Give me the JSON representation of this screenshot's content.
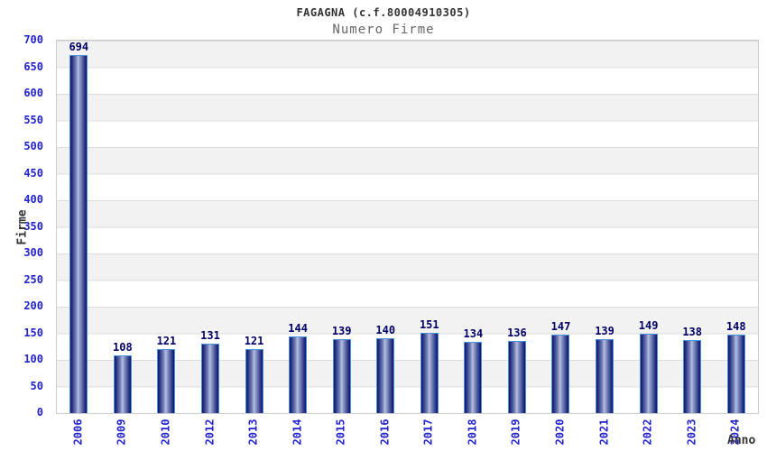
{
  "chart_data": {
    "type": "bar",
    "title": "FAGAGNA (c.f.80004910305)",
    "subtitle": "Numero Firme",
    "xlabel": "Anno",
    "ylabel": "Firme",
    "categories": [
      "2006",
      "2009",
      "2010",
      "2012",
      "2013",
      "2014",
      "2015",
      "2016",
      "2017",
      "2018",
      "2019",
      "2020",
      "2021",
      "2022",
      "2023",
      "2024"
    ],
    "values": [
      694,
      108,
      121,
      131,
      121,
      144,
      139,
      140,
      151,
      134,
      136,
      147,
      139,
      149,
      138,
      148
    ],
    "ylim": [
      0,
      700
    ],
    "y_ticks": [
      0,
      50,
      100,
      150,
      200,
      250,
      300,
      350,
      400,
      450,
      500,
      550,
      600,
      650,
      700
    ],
    "grid": "horizontal-bands",
    "legend": "none",
    "colors": {
      "bar_dark": "#131368",
      "bar_mid": "#2a3787",
      "bar_light": "#b7c0de",
      "bar_border": "#4a90d9",
      "tick_label": "#2222cc",
      "value_label": "#000066",
      "title": "#333333",
      "subtitle": "#666666",
      "band_gray": "#f2f2f2",
      "band_white": "#ffffff",
      "grid_line": "#dcdcdc",
      "plot_border": "#cccccc"
    }
  }
}
